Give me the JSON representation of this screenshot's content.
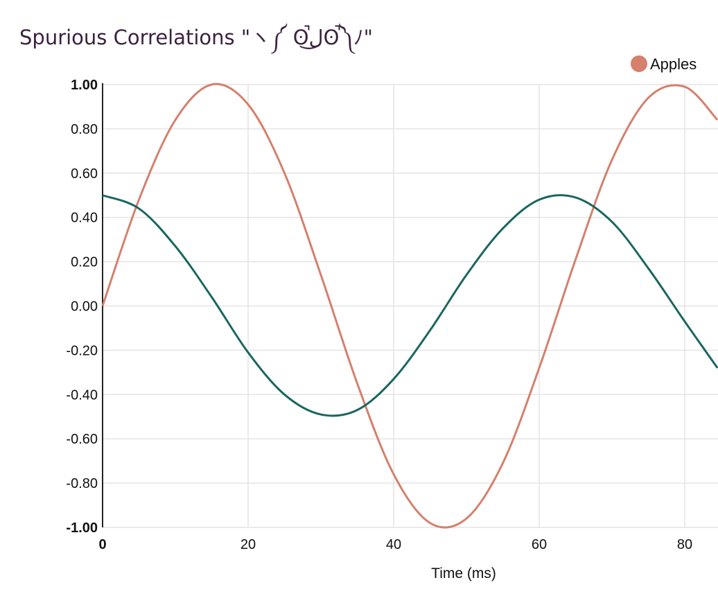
{
  "title": "Spurious Correlations \"ヽ༼ ʘ̚ل͜ʘ̚༽ﾉ\"",
  "chart_data": {
    "type": "line",
    "title": "Spurious Correlations \"ヽ༼ ʘ̚ل͜ʘ̚༽ﾉ\"",
    "xlabel": "Time (ms)",
    "ylabel": "",
    "xlim": [
      0,
      84.5
    ],
    "ylim": [
      -1.0,
      1.0
    ],
    "x_ticks": [
      "0",
      "20",
      "40",
      "60",
      "80"
    ],
    "y_ticks": [
      "1.00",
      "0.80",
      "0.60",
      "0.40",
      "0.20",
      "0.00",
      "-0.20",
      "-0.40",
      "-0.60",
      "-0.80",
      "-1.00"
    ],
    "grid": true,
    "legend": {
      "position": "top-right",
      "entries": [
        "Apples"
      ]
    },
    "series": [
      {
        "name": "Apples",
        "color": "#d4806c",
        "x": [
          0,
          5,
          10,
          15,
          20,
          25,
          30,
          35,
          40,
          45,
          50,
          55,
          60,
          65,
          70,
          75,
          80,
          84.5
        ],
        "y": [
          0.0,
          0.48,
          0.84,
          1.0,
          0.91,
          0.6,
          0.14,
          -0.35,
          -0.76,
          -0.98,
          -0.96,
          -0.71,
          -0.28,
          0.21,
          0.66,
          0.94,
          0.99,
          0.84
        ]
      },
      {
        "name": "",
        "color": "#1a6660",
        "x": [
          0,
          5,
          10,
          15,
          20,
          25,
          30,
          35,
          40,
          45,
          50,
          55,
          60,
          65,
          70,
          75,
          80,
          84.5
        ],
        "y": [
          0.5,
          0.44,
          0.27,
          0.04,
          -0.21,
          -0.4,
          -0.49,
          -0.47,
          -0.33,
          -0.11,
          0.14,
          0.35,
          0.48,
          0.49,
          0.38,
          0.17,
          -0.07,
          -0.28
        ]
      }
    ]
  }
}
